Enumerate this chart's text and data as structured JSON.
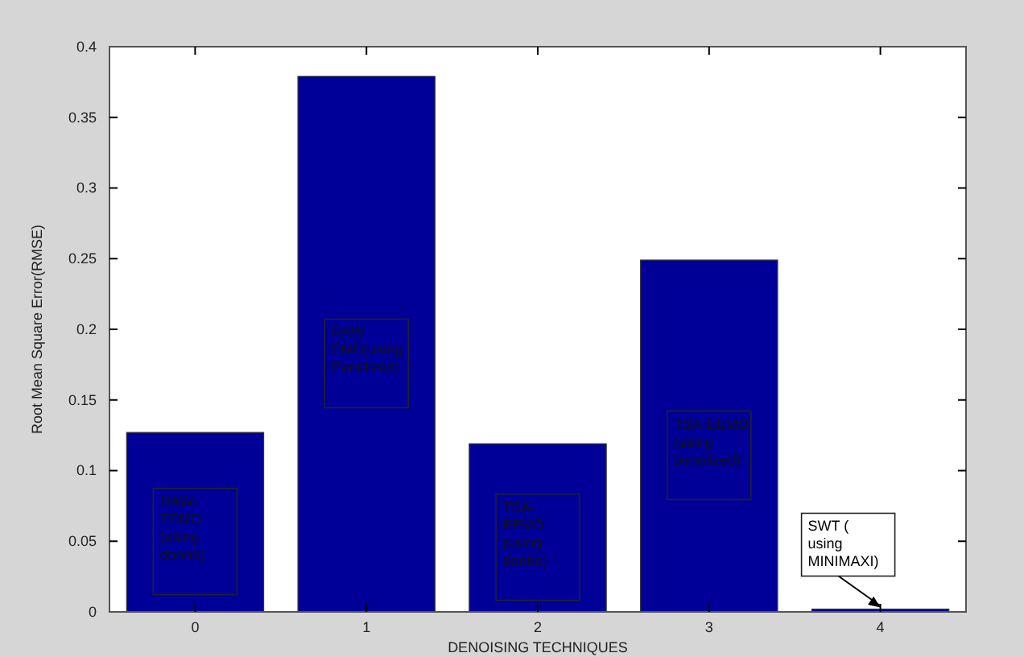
{
  "chart_data": {
    "type": "bar",
    "xlabel": "DENOISING TECHNIQUES",
    "ylabel": "Root Mean Square Error(RMSE)",
    "categories": [
      "0",
      "1",
      "2",
      "3",
      "4"
    ],
    "values": [
      0.127,
      0.379,
      0.119,
      0.249,
      0.002
    ],
    "color": "#000099",
    "ylim": [
      0,
      0.4
    ],
    "yticks": [
      0,
      0.05,
      0.1,
      0.15,
      0.2,
      0.25,
      0.3,
      0.35,
      0.4
    ],
    "annotations": [
      "RAW-\nEEMD\n(using\ndonho)",
      "RAW\nEMD(using\nPanelized)",
      "TSA-\nEEMD\n(using\ndonho)",
      "TSA-EEMD\n(using\npenalized)",
      {
        "text": "SWT (\nusing\nMINIMAXI)",
        "x": "4",
        "y": 0.002
      }
    ]
  }
}
